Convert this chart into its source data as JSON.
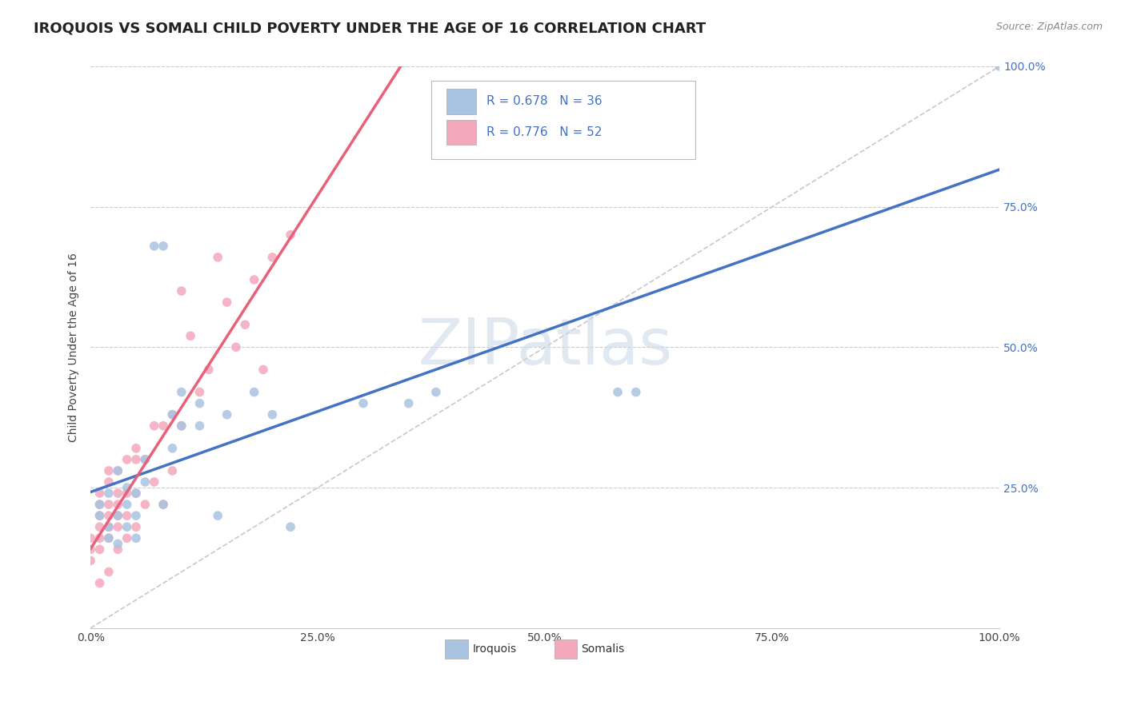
{
  "title": "IROQUOIS VS SOMALI CHILD POVERTY UNDER THE AGE OF 16 CORRELATION CHART",
  "source": "Source: ZipAtlas.com",
  "ylabel": "Child Poverty Under the Age of 16",
  "watermark": "ZIPatlas",
  "legend_iroquois_R": "R = 0.678",
  "legend_iroquois_N": "N = 36",
  "legend_somali_R": "R = 0.776",
  "legend_somali_N": "N = 52",
  "iroquois_color": "#a8c4e0",
  "somali_color": "#f4a8bc",
  "iroquois_line_color": "#4472c4",
  "somali_line_color": "#e8607a",
  "diagonal_color": "#c8c8c8",
  "iroquois_scatter": [
    [
      0.01,
      0.2
    ],
    [
      0.01,
      0.22
    ],
    [
      0.02,
      0.18
    ],
    [
      0.02,
      0.24
    ],
    [
      0.02,
      0.16
    ],
    [
      0.03,
      0.2
    ],
    [
      0.03,
      0.28
    ],
    [
      0.03,
      0.15
    ],
    [
      0.04,
      0.22
    ],
    [
      0.04,
      0.25
    ],
    [
      0.04,
      0.18
    ],
    [
      0.05,
      0.24
    ],
    [
      0.05,
      0.2
    ],
    [
      0.05,
      0.16
    ],
    [
      0.06,
      0.26
    ],
    [
      0.06,
      0.3
    ],
    [
      0.07,
      0.68
    ],
    [
      0.08,
      0.68
    ],
    [
      0.08,
      0.22
    ],
    [
      0.09,
      0.38
    ],
    [
      0.09,
      0.32
    ],
    [
      0.1,
      0.36
    ],
    [
      0.1,
      0.42
    ],
    [
      0.12,
      0.36
    ],
    [
      0.12,
      0.4
    ],
    [
      0.14,
      0.2
    ],
    [
      0.15,
      0.38
    ],
    [
      0.18,
      0.42
    ],
    [
      0.2,
      0.38
    ],
    [
      0.22,
      0.18
    ],
    [
      0.3,
      0.4
    ],
    [
      0.35,
      0.4
    ],
    [
      0.38,
      0.42
    ],
    [
      0.58,
      0.42
    ],
    [
      0.6,
      0.42
    ],
    [
      1.0,
      1.0
    ]
  ],
  "somali_scatter": [
    [
      0.0,
      0.14
    ],
    [
      0.0,
      0.16
    ],
    [
      0.0,
      0.12
    ],
    [
      0.01,
      0.08
    ],
    [
      0.01,
      0.14
    ],
    [
      0.01,
      0.16
    ],
    [
      0.01,
      0.18
    ],
    [
      0.01,
      0.2
    ],
    [
      0.01,
      0.22
    ],
    [
      0.01,
      0.24
    ],
    [
      0.02,
      0.1
    ],
    [
      0.02,
      0.16
    ],
    [
      0.02,
      0.18
    ],
    [
      0.02,
      0.2
    ],
    [
      0.02,
      0.22
    ],
    [
      0.02,
      0.26
    ],
    [
      0.02,
      0.28
    ],
    [
      0.03,
      0.14
    ],
    [
      0.03,
      0.18
    ],
    [
      0.03,
      0.2
    ],
    [
      0.03,
      0.22
    ],
    [
      0.03,
      0.24
    ],
    [
      0.03,
      0.28
    ],
    [
      0.04,
      0.16
    ],
    [
      0.04,
      0.2
    ],
    [
      0.04,
      0.24
    ],
    [
      0.04,
      0.3
    ],
    [
      0.05,
      0.18
    ],
    [
      0.05,
      0.24
    ],
    [
      0.05,
      0.3
    ],
    [
      0.05,
      0.32
    ],
    [
      0.06,
      0.22
    ],
    [
      0.06,
      0.3
    ],
    [
      0.07,
      0.26
    ],
    [
      0.07,
      0.36
    ],
    [
      0.08,
      0.22
    ],
    [
      0.08,
      0.36
    ],
    [
      0.09,
      0.28
    ],
    [
      0.09,
      0.38
    ],
    [
      0.1,
      0.36
    ],
    [
      0.1,
      0.6
    ],
    [
      0.11,
      0.52
    ],
    [
      0.12,
      0.42
    ],
    [
      0.13,
      0.46
    ],
    [
      0.14,
      0.66
    ],
    [
      0.15,
      0.58
    ],
    [
      0.16,
      0.5
    ],
    [
      0.17,
      0.54
    ],
    [
      0.18,
      0.62
    ],
    [
      0.19,
      0.46
    ],
    [
      0.2,
      0.66
    ],
    [
      0.22,
      0.7
    ]
  ],
  "xlim": [
    0.0,
    1.0
  ],
  "ylim": [
    0.0,
    1.0
  ],
  "xticks": [
    0.0,
    0.25,
    0.5,
    0.75,
    1.0
  ],
  "xtick_labels": [
    "0.0%",
    "25.0%",
    "50.0%",
    "75.0%",
    "100.0%"
  ],
  "yticks": [
    0.25,
    0.5,
    0.75,
    1.0
  ],
  "ytick_labels": [
    "25.0%",
    "50.0%",
    "75.0%",
    "100.0%"
  ],
  "grid_color": "#cccccc",
  "background_color": "#ffffff",
  "title_fontsize": 13,
  "axis_label_fontsize": 10,
  "tick_fontsize": 10,
  "iroquois_reg": [
    0.2,
    0.67
  ],
  "somali_reg": [
    0.02,
    3.5
  ]
}
